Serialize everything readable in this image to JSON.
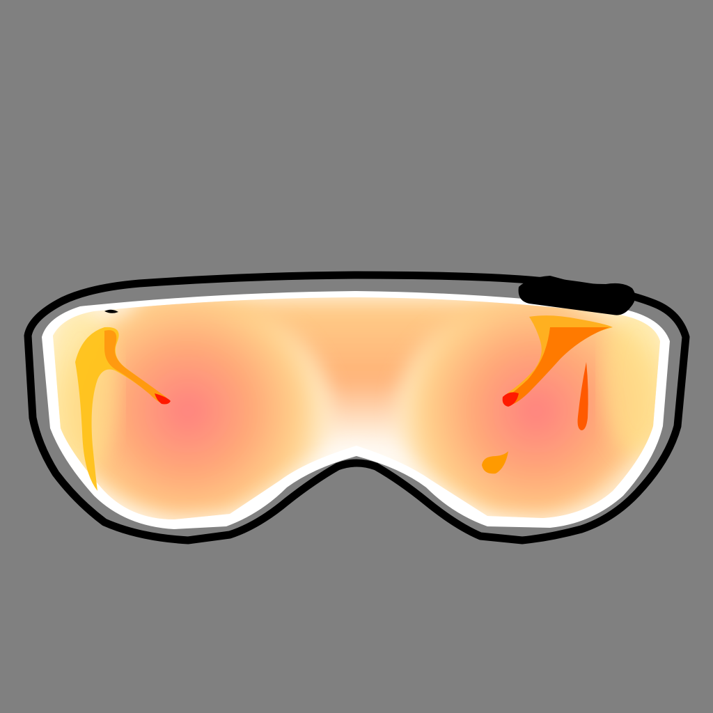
{
  "scene": {
    "subject_icon": "ski-goggles-icon",
    "colors": {
      "background": "#808080",
      "frame": "#000000",
      "rim": "#ffffff",
      "lens_hot": "#ff8080",
      "lens_warm": "#ffb070",
      "lens_edge": "#ffe08a",
      "splatter_dark": "#ff1a00",
      "splatter_mid": "#ff7000",
      "splatter_light": "#ffc000"
    }
  }
}
